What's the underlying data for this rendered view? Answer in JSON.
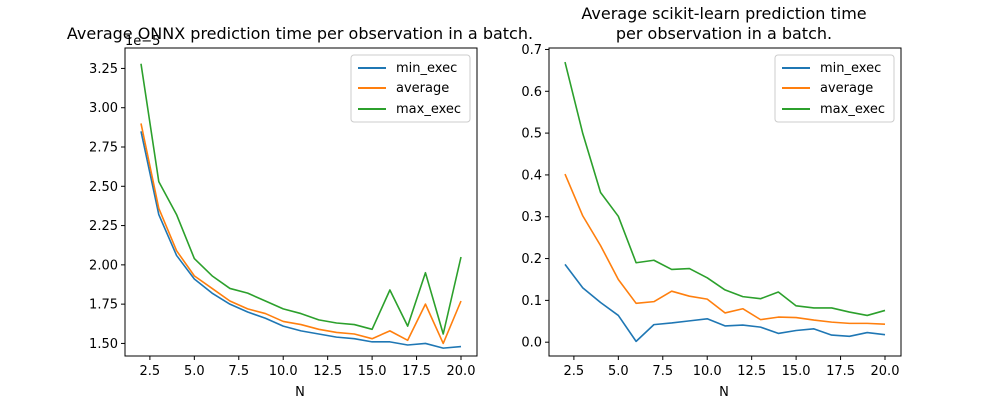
{
  "chart_data": [
    {
      "type": "line",
      "title": "Average ONNX prediction time per observation in a batch.",
      "xlabel": "N",
      "ylabel": "",
      "y_offset_label": "1e−5",
      "xlim": [
        1.1,
        20.9
      ],
      "ylim": [
        1.42,
        3.38
      ],
      "x_ticks": [
        2.5,
        5.0,
        7.5,
        10.0,
        12.5,
        15.0,
        17.5,
        20.0
      ],
      "x_tick_labels": [
        "2.5",
        "5.0",
        "7.5",
        "10.0",
        "12.5",
        "15.0",
        "17.5",
        "20.0"
      ],
      "y_ticks": [
        1.5,
        1.75,
        2.0,
        2.25,
        2.5,
        2.75,
        3.0,
        3.25
      ],
      "y_tick_labels": [
        "1.50",
        "1.75",
        "2.00",
        "2.25",
        "2.50",
        "2.75",
        "3.00",
        "3.25"
      ],
      "legend_position": "top-right",
      "x": [
        2,
        3,
        4,
        5,
        6,
        7,
        8,
        9,
        10,
        11,
        12,
        13,
        14,
        15,
        16,
        17,
        18,
        19,
        20
      ],
      "series": [
        {
          "name": "min_exec",
          "color": "#1f77b4",
          "values": [
            2.85,
            2.32,
            2.06,
            1.91,
            1.82,
            1.75,
            1.7,
            1.66,
            1.61,
            1.58,
            1.56,
            1.54,
            1.53,
            1.51,
            1.51,
            1.49,
            1.5,
            1.47,
            1.48
          ]
        },
        {
          "name": "average",
          "color": "#ff7f0e",
          "values": [
            2.9,
            2.36,
            2.09,
            1.93,
            1.85,
            1.77,
            1.72,
            1.69,
            1.64,
            1.62,
            1.59,
            1.57,
            1.56,
            1.53,
            1.58,
            1.52,
            1.75,
            1.5,
            1.77
          ]
        },
        {
          "name": "max_exec",
          "color": "#2ca02c",
          "values": [
            3.28,
            2.53,
            2.32,
            2.04,
            1.93,
            1.85,
            1.82,
            1.77,
            1.72,
            1.69,
            1.65,
            1.63,
            1.62,
            1.59,
            1.84,
            1.61,
            1.95,
            1.56,
            2.05
          ]
        }
      ]
    },
    {
      "type": "line",
      "title": "Average scikit-learn prediction time\nper observation in a batch.",
      "title_lines": [
        "Average scikit-learn prediction time",
        "per observation in a batch."
      ],
      "xlabel": "N",
      "ylabel": "",
      "xlim": [
        1.1,
        20.9
      ],
      "ylim": [
        -0.033,
        0.7035
      ],
      "x_ticks": [
        2.5,
        5.0,
        7.5,
        10.0,
        12.5,
        15.0,
        17.5,
        20.0
      ],
      "x_tick_labels": [
        "2.5",
        "5.0",
        "7.5",
        "10.0",
        "12.5",
        "15.0",
        "17.5",
        "20.0"
      ],
      "y_ticks": [
        0.0,
        0.1,
        0.2,
        0.3,
        0.4,
        0.5,
        0.6,
        0.7
      ],
      "y_tick_labels": [
        "0.0",
        "0.1",
        "0.2",
        "0.3",
        "0.4",
        "0.5",
        "0.6",
        "0.7"
      ],
      "legend_position": "top-right",
      "x": [
        2,
        3,
        4,
        5,
        6,
        7,
        8,
        9,
        10,
        11,
        12,
        13,
        14,
        15,
        16,
        17,
        18,
        19,
        20
      ],
      "series": [
        {
          "name": "min_exec",
          "color": "#1f77b4",
          "values": [
            0.186,
            0.13,
            0.095,
            0.064,
            0.002,
            0.042,
            0.046,
            0.051,
            0.056,
            0.039,
            0.041,
            0.036,
            0.021,
            0.028,
            0.032,
            0.017,
            0.014,
            0.023,
            0.018
          ]
        },
        {
          "name": "average",
          "color": "#ff7f0e",
          "values": [
            0.402,
            0.302,
            0.231,
            0.15,
            0.093,
            0.097,
            0.122,
            0.11,
            0.103,
            0.07,
            0.08,
            0.054,
            0.06,
            0.059,
            0.053,
            0.048,
            0.045,
            0.045,
            0.043
          ]
        },
        {
          "name": "max_exec",
          "color": "#2ca02c",
          "values": [
            0.67,
            0.499,
            0.358,
            0.301,
            0.19,
            0.196,
            0.174,
            0.176,
            0.154,
            0.125,
            0.109,
            0.104,
            0.12,
            0.087,
            0.082,
            0.082,
            0.072,
            0.064,
            0.076
          ]
        }
      ]
    }
  ]
}
